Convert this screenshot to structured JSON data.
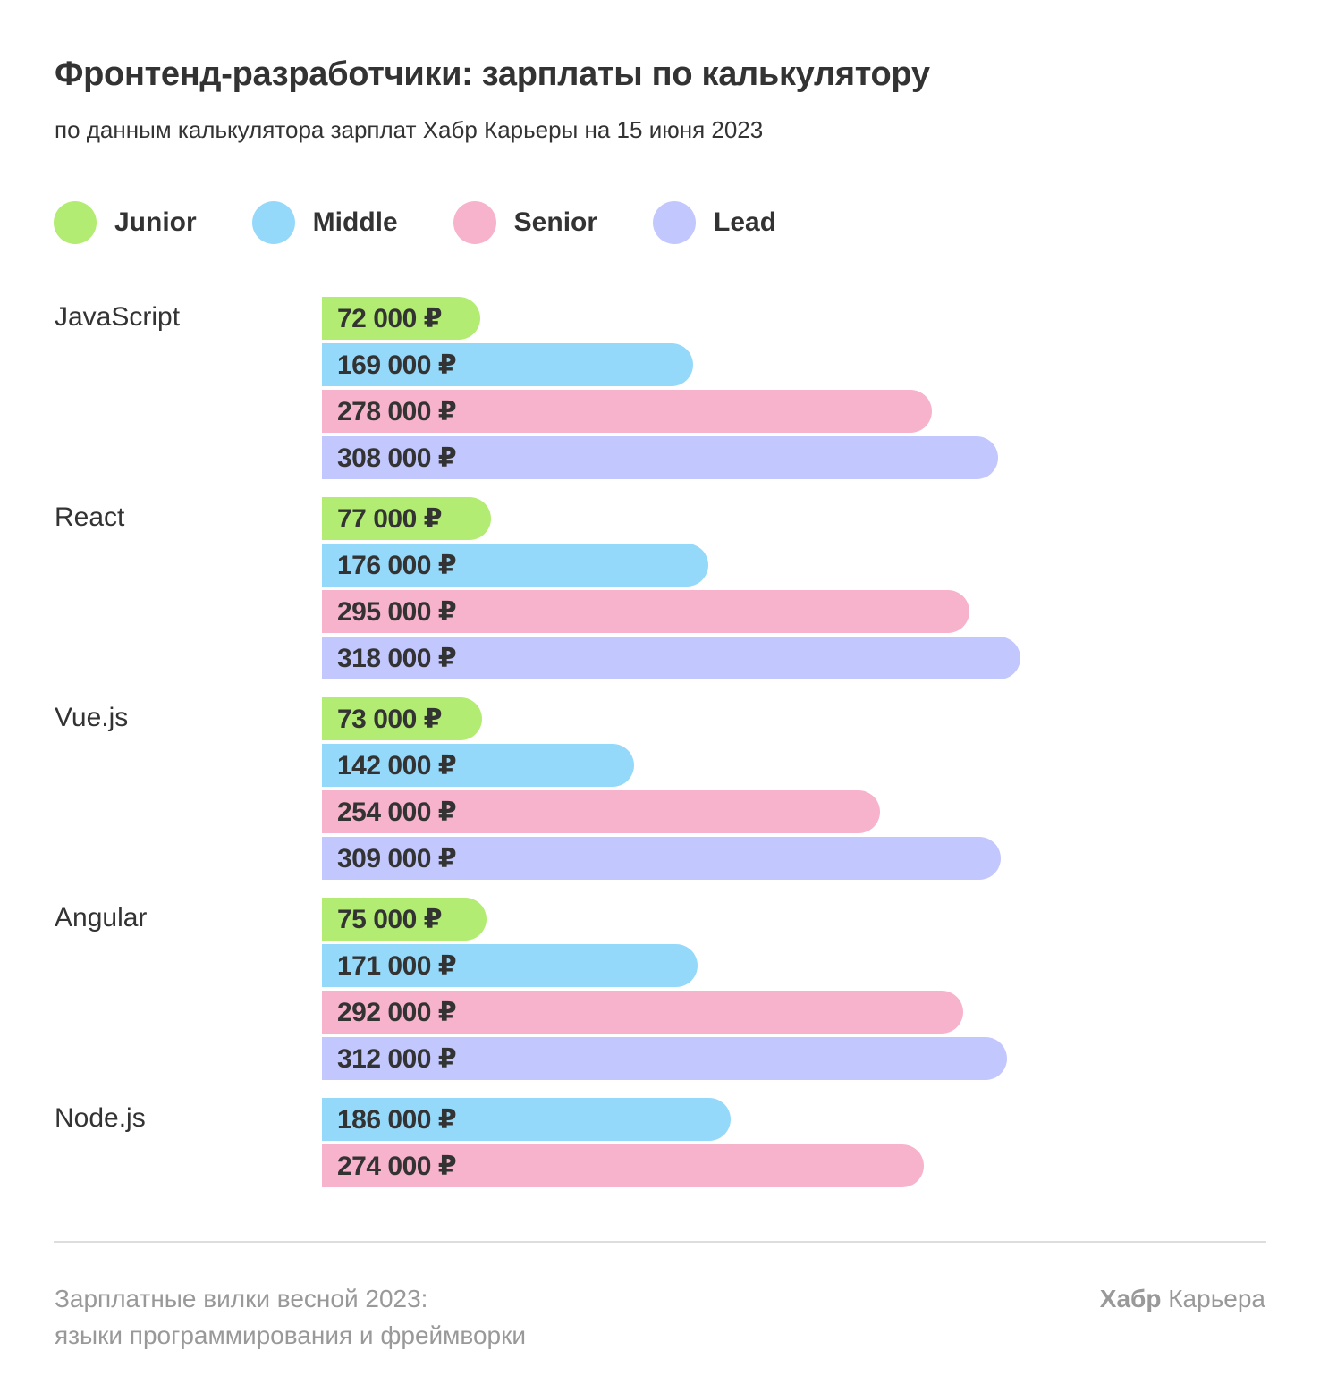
{
  "header": {
    "title": "Фронтенд-разработчики: зарплаты по калькулятору",
    "subtitle": "по данным калькулятора зарплат Хабр Карьеры на 15 июня 2023"
  },
  "legend": [
    {
      "label": "Junior",
      "color": "#b2ec72"
    },
    {
      "label": "Middle",
      "color": "#95d9fa"
    },
    {
      "label": "Senior",
      "color": "#f7b3cb"
    },
    {
      "label": "Lead",
      "color": "#c2c7fe"
    }
  ],
  "groups": [
    {
      "label": "JavaScript",
      "bars": [
        {
          "level": "Junior",
          "value": 72000,
          "text": "72 000 ₽"
        },
        {
          "level": "Middle",
          "value": 169000,
          "text": "169 000 ₽"
        },
        {
          "level": "Senior",
          "value": 278000,
          "text": "278 000 ₽"
        },
        {
          "level": "Lead",
          "value": 308000,
          "text": "308 000 ₽"
        }
      ]
    },
    {
      "label": "React",
      "bars": [
        {
          "level": "Junior",
          "value": 77000,
          "text": "77 000 ₽"
        },
        {
          "level": "Middle",
          "value": 176000,
          "text": "176 000 ₽"
        },
        {
          "level": "Senior",
          "value": 295000,
          "text": "295 000 ₽"
        },
        {
          "level": "Lead",
          "value": 318000,
          "text": "318 000 ₽"
        }
      ]
    },
    {
      "label": "Vue.js",
      "bars": [
        {
          "level": "Junior",
          "value": 73000,
          "text": "73 000 ₽"
        },
        {
          "level": "Middle",
          "value": 142000,
          "text": "142 000 ₽"
        },
        {
          "level": "Senior",
          "value": 254000,
          "text": "254 000 ₽"
        },
        {
          "level": "Lead",
          "value": 309000,
          "text": "309 000 ₽"
        }
      ]
    },
    {
      "label": "Angular",
      "bars": [
        {
          "level": "Junior",
          "value": 75000,
          "text": "75 000 ₽"
        },
        {
          "level": "Middle",
          "value": 171000,
          "text": "171 000 ₽"
        },
        {
          "level": "Senior",
          "value": 292000,
          "text": "292 000 ₽"
        },
        {
          "level": "Lead",
          "value": 312000,
          "text": "312 000 ₽"
        }
      ]
    },
    {
      "label": "Node.js",
      "bars": [
        {
          "level": "Middle",
          "value": 186000,
          "text": "186 000 ₽"
        },
        {
          "level": "Senior",
          "value": 274000,
          "text": "274 000 ₽"
        }
      ]
    }
  ],
  "footer": {
    "left_line1": "Зарплатные вилки весной 2023:",
    "left_line2": "языки программирования и фреймворки",
    "brand_bold": "Хабр",
    "brand_regular": " Карьера"
  },
  "chart_data": {
    "type": "bar",
    "orientation": "horizontal",
    "title": "Фронтенд-разработчики: зарплаты по калькулятору",
    "subtitle": "по данным калькулятора зарплат Хабр Карьеры на 15 июня 2023",
    "categories": [
      "JavaScript",
      "React",
      "Vue.js",
      "Angular",
      "Node.js"
    ],
    "series": [
      {
        "name": "Junior",
        "color": "#b2ec72",
        "values": [
          72000,
          77000,
          73000,
          75000,
          null
        ]
      },
      {
        "name": "Middle",
        "color": "#95d9fa",
        "values": [
          169000,
          176000,
          142000,
          171000,
          186000
        ]
      },
      {
        "name": "Senior",
        "color": "#f7b3cb",
        "values": [
          278000,
          295000,
          254000,
          292000,
          274000
        ]
      },
      {
        "name": "Lead",
        "color": "#c2c7fe",
        "values": [
          308000,
          318000,
          309000,
          312000,
          null
        ]
      }
    ],
    "unit": "₽",
    "xlabel": "",
    "ylabel": "",
    "grid": false,
    "legend_position": "top"
  }
}
